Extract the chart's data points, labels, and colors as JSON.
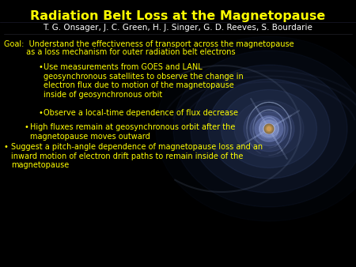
{
  "title": "Radiation Belt Loss at the Magnetopause",
  "authors": "T. G. Onsager, J. C. Green, H. J. Singer, G. D. Reeves, S. Bourdarie",
  "background_color": "#000000",
  "title_color": "#ffff00",
  "authors_color": "#ffffff",
  "text_color": "#ffff00",
  "title_fontsize": 11.5,
  "authors_fontsize": 7.5,
  "body_fontsize": 7.0,
  "goal_text_line1": "Goal:  Understand the effectiveness of transport across the magnetopause",
  "goal_text_line2": "         as a loss mechanism for outer radiation belt electrons",
  "bullet1": "Use measurements from GOES and LANL\ngeosynchronous satellites to observe the change in\nelectron flux due to motion of the magnetopause\ninside of geosynchronous orbit",
  "bullet2": "Observe a local-time dependence of flux decrease",
  "bullet3": "High fluxes remain at geosynchronous orbit after the\nmagnetopause moves outward",
  "bullet4": "Suggest a pitch-angle dependence of magnetopause loss and an\ninward motion of electron drift paths to remain inside of the\nmagnetopause"
}
